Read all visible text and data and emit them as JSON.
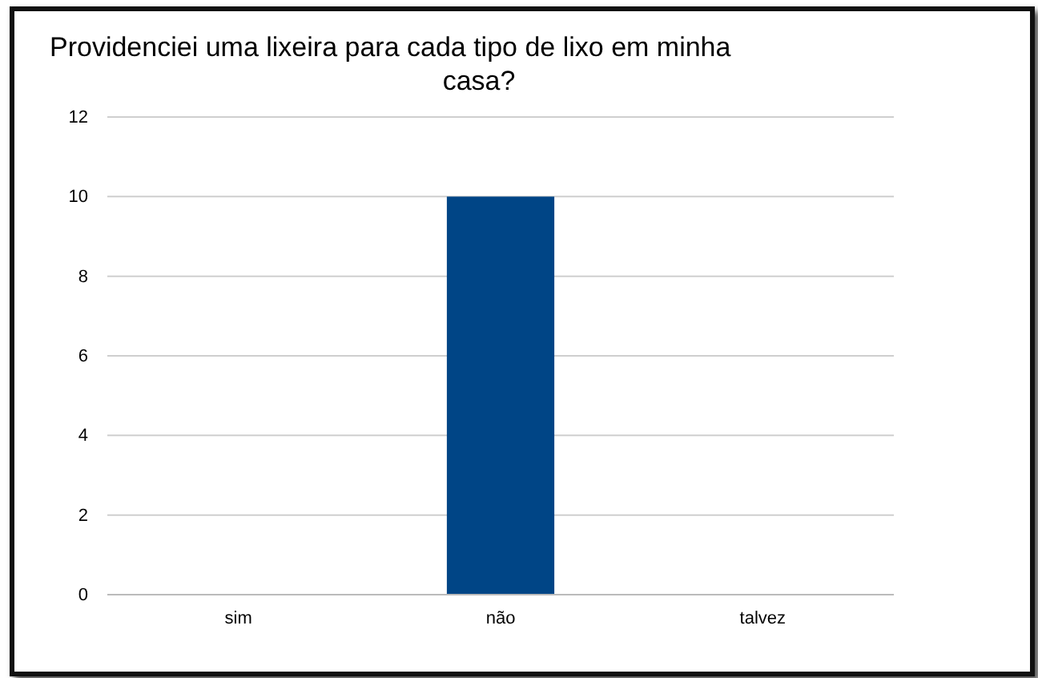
{
  "chart_data": {
    "type": "bar",
    "title": "Providenciei uma lixeira para cada tipo de lixo em minha casa?",
    "categories": [
      "sim",
      "não",
      "talvez"
    ],
    "values": [
      0,
      10,
      0
    ],
    "color": "#004586",
    "ylim": [
      0,
      12
    ],
    "yticks": [
      0,
      2,
      4,
      6,
      8,
      10,
      12
    ],
    "grid": "y"
  }
}
